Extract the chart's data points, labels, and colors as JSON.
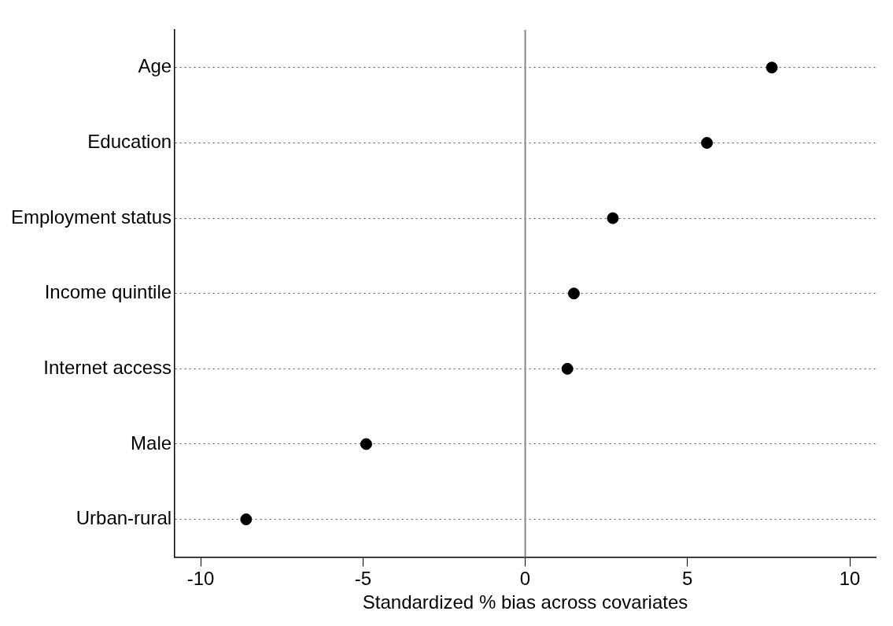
{
  "chart_data": {
    "type": "scatter",
    "orientation": "horizontal",
    "xlabel": "Standardized % bias across covariates",
    "categories": [
      "Age",
      "Education",
      "Employment status",
      "Income quintile",
      "Internet access",
      "Male",
      "Urban-rural"
    ],
    "series": [
      {
        "color": "#000000",
        "values": [
          7.6,
          5.6,
          2.7,
          1.5,
          1.3,
          -4.9,
          -8.6
        ]
      }
    ],
    "xlim": [
      -10.8,
      10.8
    ],
    "xticks": [
      -10,
      -5,
      0,
      5,
      10
    ],
    "ref_lines": [
      {
        "axis": "x",
        "value": 0,
        "color": "#888888"
      }
    ],
    "grid": "y",
    "line_style": "dotted",
    "marker": "circle",
    "legend": false
  }
}
